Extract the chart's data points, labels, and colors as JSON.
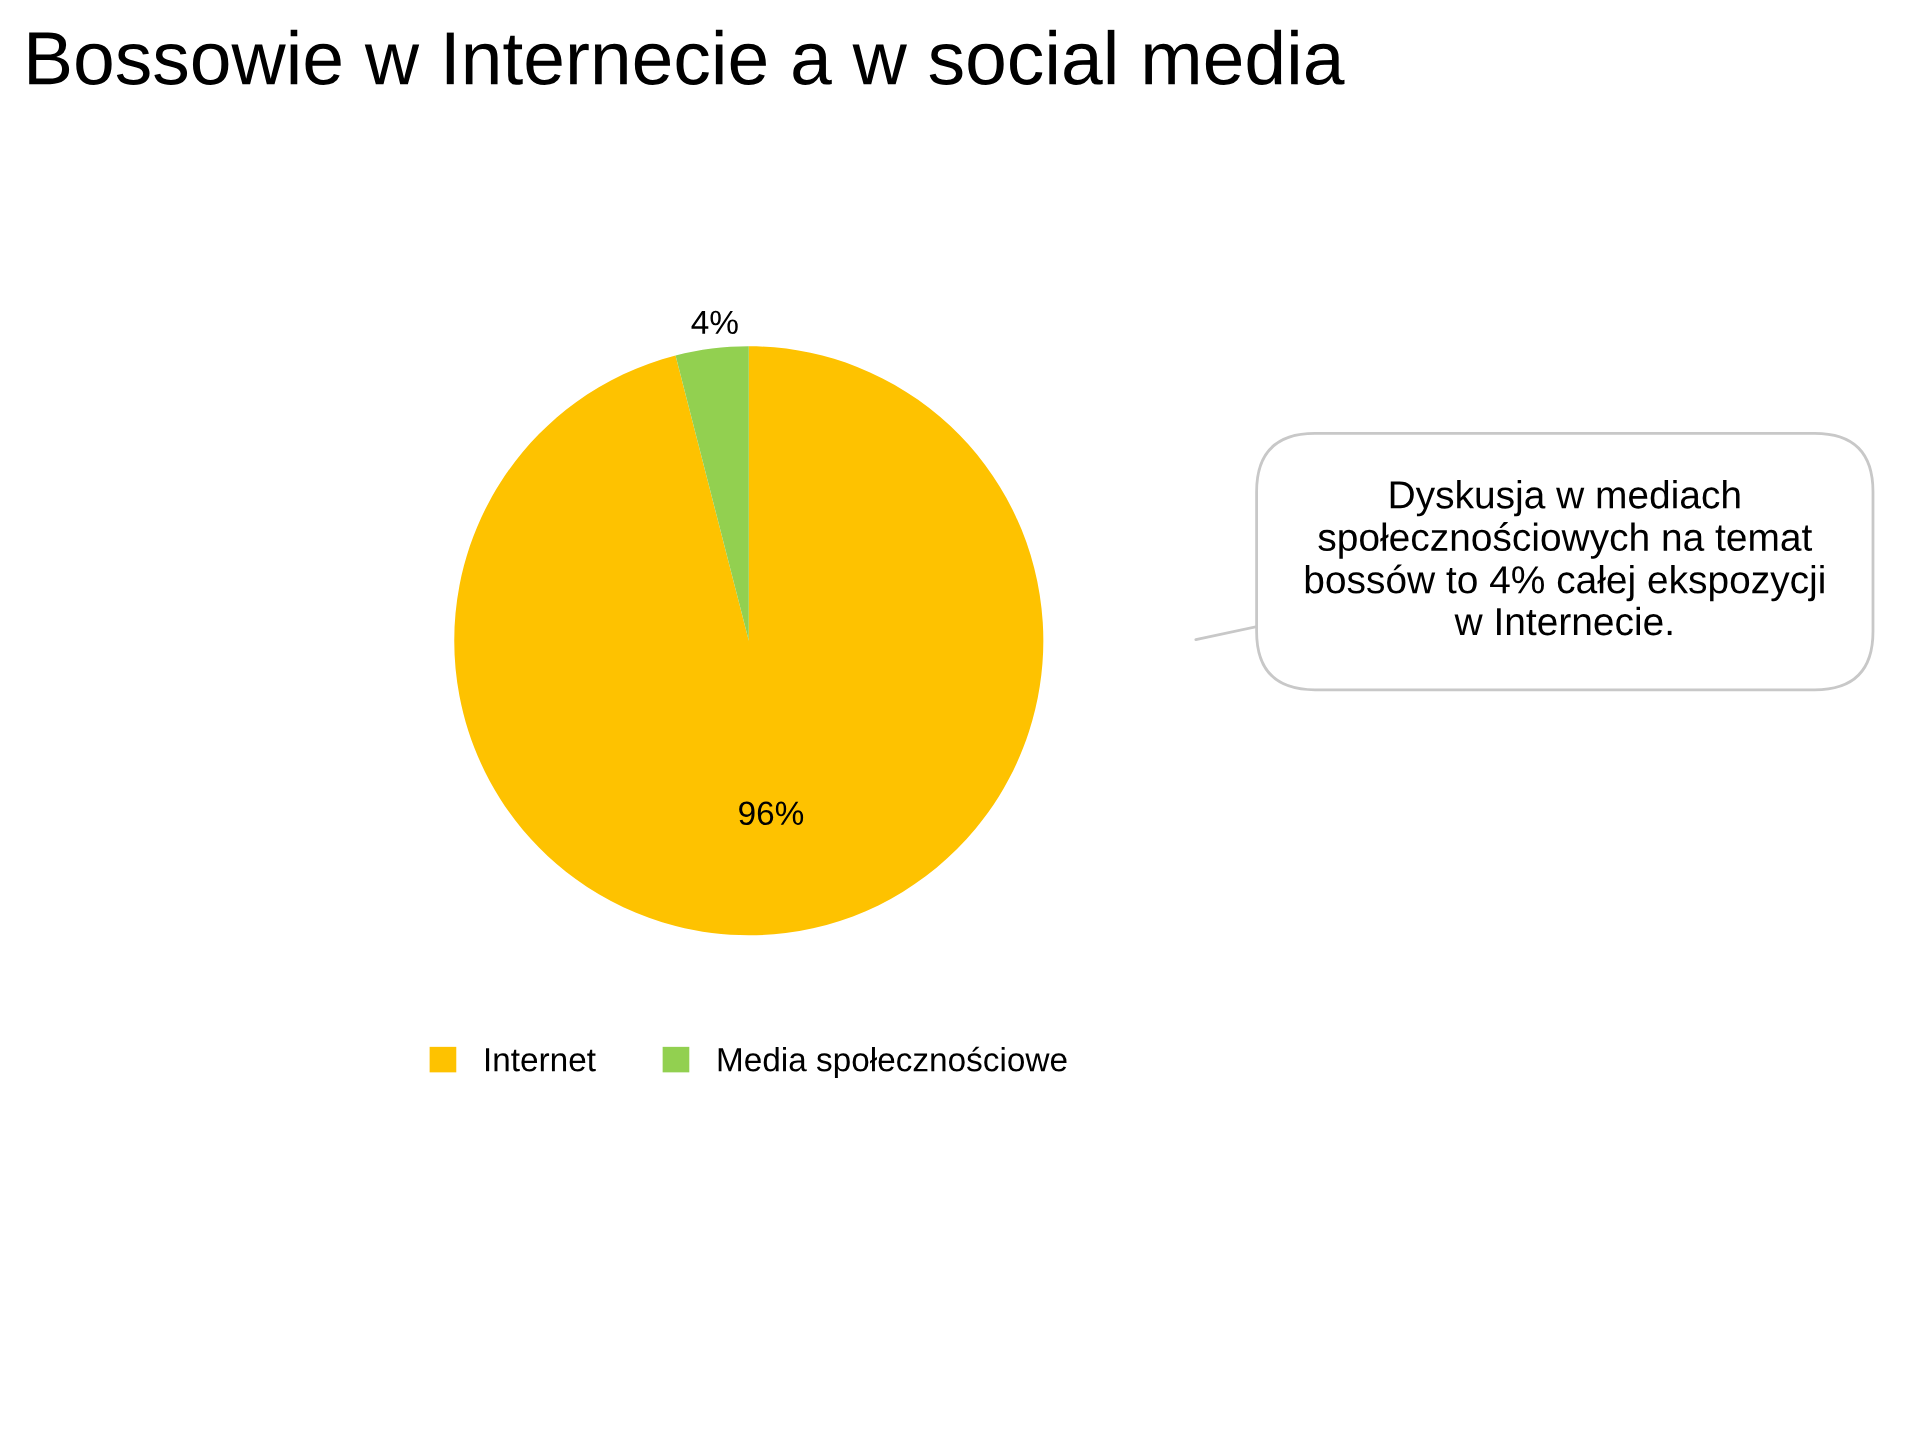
{
  "chart_data": {
    "type": "pie",
    "title": "Bossowie w Internecie a w social media",
    "categories": [
      "Internet",
      "Media społecznościowe"
    ],
    "values": [
      96,
      4
    ],
    "colors": [
      "#fec200",
      "#92d050"
    ],
    "value_labels": [
      "96%",
      "4%"
    ],
    "legend": "bottom",
    "annotations": [
      "Dyskusja w mediach społecznościowych na temat bossów to 4% całej ekspozycji w Internecie."
    ]
  }
}
